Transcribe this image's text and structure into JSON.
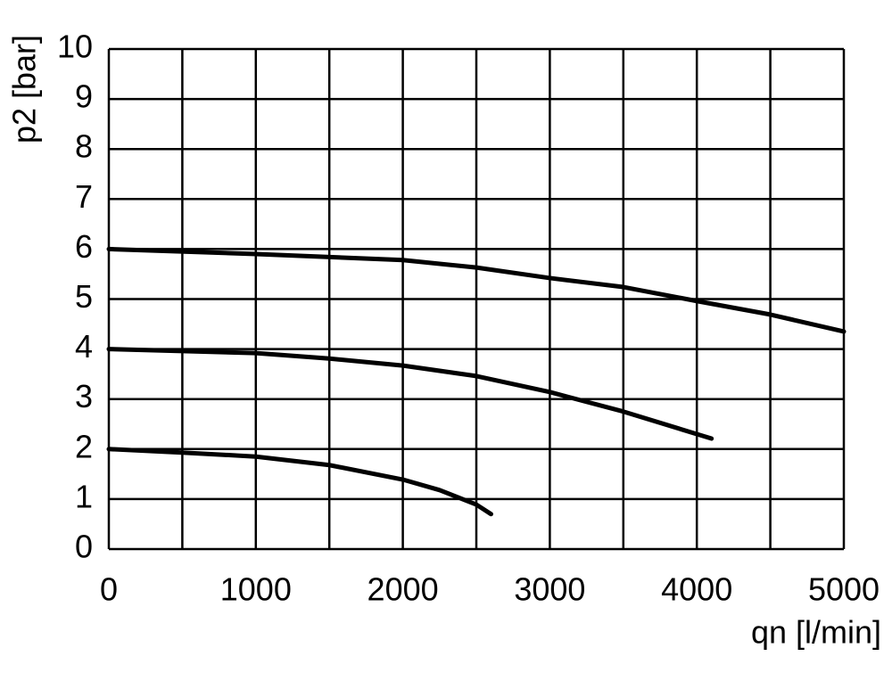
{
  "chart_data": {
    "type": "line",
    "xlabel": "qn [l/min]",
    "ylabel": "p2 [bar]",
    "xlim": [
      0,
      5000
    ],
    "ylim": [
      0,
      10
    ],
    "xticks": [
      0,
      1000,
      2000,
      3000,
      4000,
      5000
    ],
    "xgrid": [
      0,
      500,
      1000,
      1500,
      2000,
      2500,
      3000,
      3500,
      4000,
      4500,
      5000
    ],
    "yticks": [
      0,
      1,
      2,
      3,
      4,
      5,
      6,
      7,
      8,
      9,
      10
    ],
    "grid": true,
    "series": [
      {
        "color": "#000000",
        "x": [
          0,
          1000,
          2000,
          2500,
          3000,
          3500,
          4000,
          4500,
          5000
        ],
        "values": [
          6.0,
          5.9,
          5.78,
          5.63,
          5.42,
          5.24,
          4.96,
          4.69,
          4.35
        ]
      },
      {
        "color": "#000000",
        "x": [
          0,
          1000,
          1500,
          2000,
          2500,
          3000,
          3500,
          4000,
          4100
        ],
        "values": [
          4.0,
          3.92,
          3.81,
          3.67,
          3.46,
          3.14,
          2.75,
          2.3,
          2.21
        ]
      },
      {
        "color": "#000000",
        "x": [
          0,
          500,
          1000,
          1500,
          2000,
          2250,
          2500,
          2600
        ],
        "values": [
          2.0,
          1.93,
          1.85,
          1.68,
          1.39,
          1.18,
          0.89,
          0.7
        ]
      }
    ]
  }
}
